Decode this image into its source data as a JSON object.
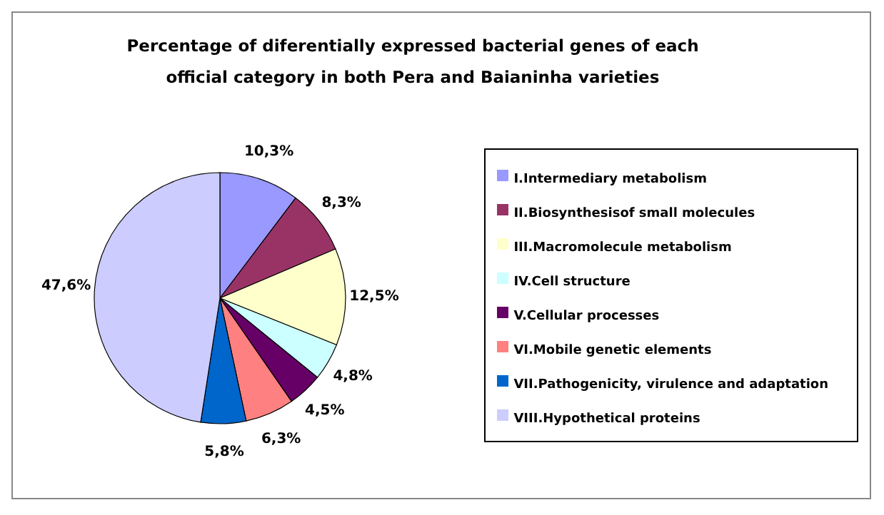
{
  "chart_data": {
    "type": "pie",
    "title": "Percentage of diferentially expressed bacterial genes of each official category in both Pera and Baianinha varieties",
    "categories": [
      "I.Intermediary metabolism",
      "II.Biosynthesisof small molecules",
      "III.Macromolecule metabolism",
      "IV.Cell structure",
      "V.Cellular processes",
      "VI.Mobile genetic elements",
      "VII.Pathogenicity, virulence and adaptation",
      "VIII.Hypothetical proteins"
    ],
    "values": [
      10.3,
      8.3,
      12.5,
      4.8,
      4.5,
      6.3,
      5.8,
      47.6
    ],
    "value_labels": [
      "10,3%",
      "8,3%",
      "12,5%",
      "4,8%",
      "4,5%",
      "6,3%",
      "5,8%",
      "47,6%"
    ],
    "colors": [
      "#9999ff",
      "#993366",
      "#ffffcc",
      "#ccffff",
      "#660066",
      "#ff8080",
      "#0066cc",
      "#ccccff"
    ],
    "legend": "right"
  }
}
